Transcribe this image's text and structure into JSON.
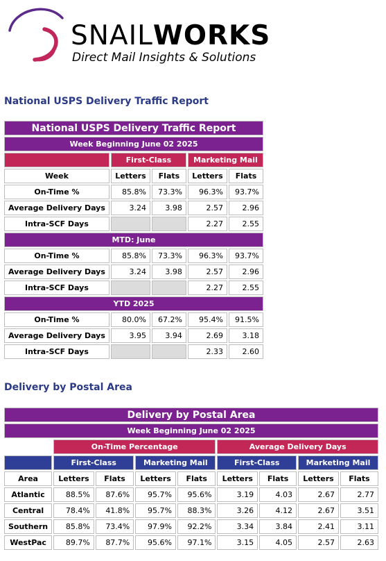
{
  "logo": {
    "brand_thin": "SNAIL",
    "brand_bold": "WORKS",
    "tagline": "Direct Mail Insights & Solutions",
    "swoosh_colors": [
      "#5c2a8a",
      "#c1275a"
    ]
  },
  "national": {
    "section_title": "National USPS Delivery Traffic Report",
    "table_title": "National USPS Delivery Traffic Report",
    "week_label": "Week Beginning June 02 2025",
    "group_first_class": "First-Class",
    "group_marketing": "Marketing Mail",
    "col_week": "Week",
    "col_letters": "Letters",
    "col_flats": "Flats",
    "week_rows": [
      {
        "label": "On-Time %",
        "fc_letters": "85.8%",
        "fc_flats": "73.3%",
        "mm_letters": "96.3%",
        "mm_flats": "93.7%"
      },
      {
        "label": "Average Delivery Days",
        "fc_letters": "3.24",
        "fc_flats": "3.98",
        "mm_letters": "2.57",
        "mm_flats": "2.96"
      },
      {
        "label": "Intra-SCF Days",
        "fc_letters": "",
        "fc_flats": "",
        "mm_letters": "2.27",
        "mm_flats": "2.55"
      }
    ],
    "mtd_label": "MTD: June",
    "mtd_rows": [
      {
        "label": "On-Time %",
        "fc_letters": "85.8%",
        "fc_flats": "73.3%",
        "mm_letters": "96.3%",
        "mm_flats": "93.7%"
      },
      {
        "label": "Average Delivery Days",
        "fc_letters": "3.24",
        "fc_flats": "3.98",
        "mm_letters": "2.57",
        "mm_flats": "2.96"
      },
      {
        "label": "Intra-SCF Days",
        "fc_letters": "",
        "fc_flats": "",
        "mm_letters": "2.27",
        "mm_flats": "2.55"
      }
    ],
    "ytd_label": "YTD 2025",
    "ytd_rows": [
      {
        "label": "On-Time %",
        "fc_letters": "80.0%",
        "fc_flats": "67.2%",
        "mm_letters": "95.4%",
        "mm_flats": "91.5%"
      },
      {
        "label": "Average Delivery Days",
        "fc_letters": "3.95",
        "fc_flats": "3.94",
        "mm_letters": "2.69",
        "mm_flats": "3.18"
      },
      {
        "label": "Intra-SCF Days",
        "fc_letters": "",
        "fc_flats": "",
        "mm_letters": "2.33",
        "mm_flats": "2.60"
      }
    ]
  },
  "postal": {
    "section_title": "Delivery by Postal Area",
    "table_title": "Delivery by Postal Area",
    "week_label": "Week Beginning June 02 2025",
    "group_ontime": "On-Time Percentage",
    "group_avg": "Average Delivery Days",
    "sub_first_class": "First-Class",
    "sub_marketing": "Marketing Mail",
    "col_area": "Area",
    "col_letters": "Letters",
    "col_flats": "Flats",
    "rows": [
      {
        "area": "Atlantic",
        "ot_fc_l": "88.5%",
        "ot_fc_f": "87.6%",
        "ot_mm_l": "95.7%",
        "ot_mm_f": "95.6%",
        "ad_fc_l": "3.19",
        "ad_fc_f": "4.03",
        "ad_mm_l": "2.67",
        "ad_mm_f": "2.77"
      },
      {
        "area": "Central",
        "ot_fc_l": "78.4%",
        "ot_fc_f": "41.8%",
        "ot_mm_l": "95.7%",
        "ot_mm_f": "88.3%",
        "ad_fc_l": "3.26",
        "ad_fc_f": "4.12",
        "ad_mm_l": "2.67",
        "ad_mm_f": "3.51"
      },
      {
        "area": "Southern",
        "ot_fc_l": "85.8%",
        "ot_fc_f": "73.4%",
        "ot_mm_l": "97.9%",
        "ot_mm_f": "92.2%",
        "ad_fc_l": "3.34",
        "ad_fc_f": "3.84",
        "ad_mm_l": "2.41",
        "ad_mm_f": "3.11"
      },
      {
        "area": "WestPac",
        "ot_fc_l": "89.7%",
        "ot_fc_f": "87.7%",
        "ot_mm_l": "95.6%",
        "ot_mm_f": "97.1%",
        "ad_fc_l": "3.15",
        "ad_fc_f": "4.05",
        "ad_mm_l": "2.57",
        "ad_mm_f": "2.63"
      }
    ]
  }
}
